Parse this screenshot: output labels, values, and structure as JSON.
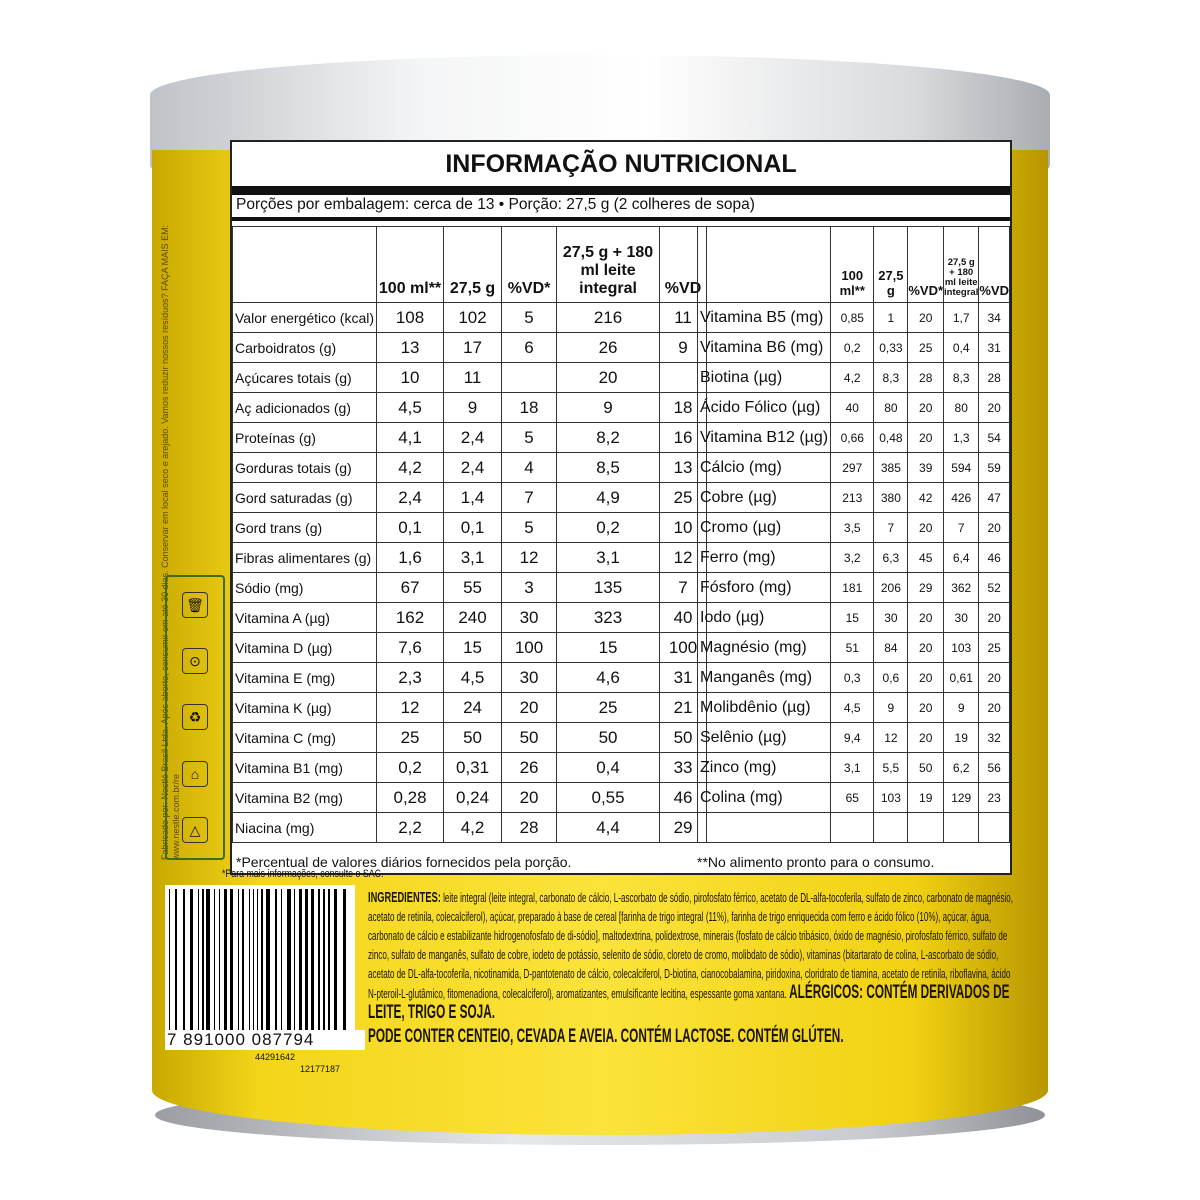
{
  "title": "INFORMAÇÃO NUTRICIONAL",
  "portion": "Porções por embalagem: cerca de 13 • Porção: 27,5 g (2 colheres de sopa)",
  "headers": [
    "",
    "100 ml**",
    "27,5 g",
    "%VD*",
    "27,5 g + 180 ml leite integral",
    "%VD"
  ],
  "left_rows": [
    [
      "Valor energético (kcal)",
      "108",
      "102",
      "5",
      "216",
      "11"
    ],
    [
      "Carboidratos (g)",
      "13",
      "17",
      "6",
      "26",
      "9"
    ],
    [
      "Açúcares totais (g)",
      "10",
      "11",
      "",
      "20",
      ""
    ],
    [
      "Aç adicionados (g)",
      "4,5",
      "9",
      "18",
      "9",
      "18"
    ],
    [
      "Proteínas (g)",
      "4,1",
      "2,4",
      "5",
      "8,2",
      "16"
    ],
    [
      "Gorduras totais (g)",
      "4,2",
      "2,4",
      "4",
      "8,5",
      "13"
    ],
    [
      "Gord saturadas (g)",
      "2,4",
      "1,4",
      "7",
      "4,9",
      "25"
    ],
    [
      "Gord trans (g)",
      "0,1",
      "0,1",
      "5",
      "0,2",
      "10"
    ],
    [
      "Fibras alimentares (g)",
      "1,6",
      "3,1",
      "12",
      "3,1",
      "12"
    ],
    [
      "Sódio (mg)",
      "67",
      "55",
      "3",
      "135",
      "7"
    ],
    [
      "Vitamina A (µg)",
      "162",
      "240",
      "30",
      "323",
      "40"
    ],
    [
      "Vitamina D (µg)",
      "7,6",
      "15",
      "100",
      "15",
      "100"
    ],
    [
      "Vitamina E (mg)",
      "2,3",
      "4,5",
      "30",
      "4,6",
      "31"
    ],
    [
      "Vitamina K (µg)",
      "12",
      "24",
      "20",
      "25",
      "21"
    ],
    [
      "Vitamina C (mg)",
      "25",
      "50",
      "50",
      "50",
      "50"
    ],
    [
      "Vitamina B1 (mg)",
      "0,2",
      "0,31",
      "26",
      "0,4",
      "33"
    ],
    [
      "Vitamina B2 (mg)",
      "0,28",
      "0,24",
      "20",
      "0,55",
      "46"
    ],
    [
      "Niacina (mg)",
      "2,2",
      "4,2",
      "28",
      "4,4",
      "29"
    ]
  ],
  "right_rows": [
    [
      "Vitamina B5 (mg)",
      "0,85",
      "1",
      "20",
      "1,7",
      "34"
    ],
    [
      "Vitamina B6 (mg)",
      "0,2",
      "0,33",
      "25",
      "0,4",
      "31"
    ],
    [
      "Biotina (µg)",
      "4,2",
      "8,3",
      "28",
      "8,3",
      "28"
    ],
    [
      "Ácido Fólico (µg)",
      "40",
      "80",
      "20",
      "80",
      "20"
    ],
    [
      "Vitamina B12 (µg)",
      "0,66",
      "0,48",
      "20",
      "1,3",
      "54"
    ],
    [
      "Cálcio (mg)",
      "297",
      "385",
      "39",
      "594",
      "59"
    ],
    [
      "Cobre (µg)",
      "213",
      "380",
      "42",
      "426",
      "47"
    ],
    [
      "Cromo (µg)",
      "3,5",
      "7",
      "20",
      "7",
      "20"
    ],
    [
      "Ferro (mg)",
      "3,2",
      "6,3",
      "45",
      "6,4",
      "46"
    ],
    [
      "Fósforo (mg)",
      "181",
      "206",
      "29",
      "362",
      "52"
    ],
    [
      "Iodo (µg)",
      "15",
      "30",
      "20",
      "30",
      "20"
    ],
    [
      "Magnésio (mg)",
      "51",
      "84",
      "20",
      "103",
      "25"
    ],
    [
      "Manganês (mg)",
      "0,3",
      "0,6",
      "20",
      "0,61",
      "20"
    ],
    [
      "Molibdênio (µg)",
      "4,5",
      "9",
      "20",
      "9",
      "20"
    ],
    [
      "Selênio (µg)",
      "9,4",
      "12",
      "20",
      "19",
      "32"
    ],
    [
      "Zinco (mg)",
      "3,1",
      "5,5",
      "50",
      "6,2",
      "56"
    ],
    [
      "Colina (mg)",
      "65",
      "103",
      "19",
      "129",
      "23"
    ],
    [
      "",
      "",
      "",
      "",
      "",
      ""
    ]
  ],
  "footnote_left": "*Percentual de valores diários fornecidos pela porção.",
  "footnote_right": "**No alimento pronto para o consumo.",
  "sac_note": "*Para mais informações, consulte o SAC.",
  "ingredients_label": "INGREDIENTES:",
  "ingredients": "leite integral (leite integral, carbonato de cálcio, L-ascorbato de sódio, pirofosfato férrico, acetato de DL-alfa-tocoferila, sulfato de zinco, carbonato de magnésio, acetato de retinila, colecalciferol), açúcar, preparado à base de cereal [farinha de trigo integral (11%), farinha de trigo enriquecida com ferro e ácido fólico (10%), açúcar, água, carbonato de cálcio e estabilizante hidrogenofosfato de di-sódio], maltodextrina, polidextrose, minerais (fosfato de cálcio tribásico, óxido de magnésio, pirofosfato férrico, sulfato de zinco, sulfato de manganês, sulfato de cobre, iodeto de potássio, selenito de sódio, cloreto de cromo, molibdato de sódio), vitaminas (bitartarato de colina, L-ascorbato de sódio, acetato de DL-alfa-tocoferila, nicotinamida, D-pantotenato de cálcio, colecalciferol, D-biotina, cianocobalamina, piridoxina, cloridrato de tiamina, acetato de retinila, riboflavina, ácido N-pteroil-L-glutâmico, fitomenadiona, colecalciferol), aromatizantes, emulsificante lecitina, espessante goma xantana.",
  "allergens": "ALÉRGICOS: CONTÉM DERIVADOS DE LEITE, TRIGO E SOJA.",
  "may_contain": "PODE CONTER CENTEIO, CEVADA E AVEIA. CONTÉM LACTOSE. CONTÉM GLÚTEN.",
  "barcode": "7 891000 087794",
  "codes": [
    "44291642",
    "12177187"
  ],
  "side_text": "Fabricado por: Nestlé Brasil Ltda. Após aberto, consumir em até 30 dias. Conservar em local seco e arejado. Vamos reduzir nossos resíduos? FAÇA MAIS EM: www.nestle.com.br/re",
  "colors": {
    "can_yellow": "#f3d51a",
    "recycle_green": "#3f6d1a"
  }
}
